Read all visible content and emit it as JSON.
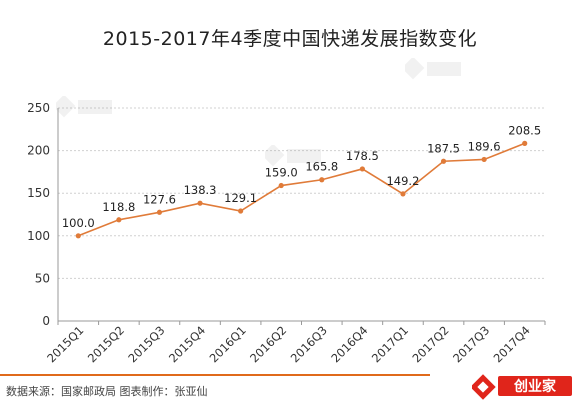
{
  "chart_data": {
    "type": "line",
    "title": "2015-2017年4季度中国快递发展指数变化",
    "categories": [
      "2015Q1",
      "2015Q2",
      "2015Q3",
      "2015Q4",
      "2016Q1",
      "2016Q2",
      "2016Q3",
      "2016Q4",
      "2017Q1",
      "2017Q2",
      "2017Q3",
      "2017Q4"
    ],
    "values": [
      100.0,
      118.8,
      127.6,
      138.3,
      129.1,
      159.0,
      165.8,
      178.5,
      149.2,
      187.5,
      189.6,
      208.5
    ],
    "data_labels": [
      "100.0",
      "118.8",
      "127.6",
      "138.3",
      "129.1",
      "159.0",
      "165.8",
      "178.5",
      "149.2",
      "187.5",
      "189.6",
      "208.5"
    ],
    "ylim": [
      0,
      250
    ],
    "yticks": [
      0,
      50,
      100,
      150,
      200,
      250
    ],
    "grid": true,
    "line_color": "#e07b39",
    "xlabel": "",
    "ylabel": ""
  },
  "footer": {
    "source": "数据来源：国家邮政局  图表制作：张亚仙",
    "accent_color": "#e06a1b"
  },
  "logo": {
    "text": "创业家"
  }
}
